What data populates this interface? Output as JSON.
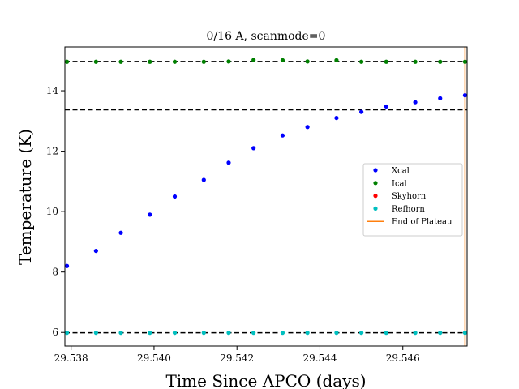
{
  "chart_data": {
    "type": "scatter",
    "title": "0/16 A, scanmode=0",
    "xlabel": "Time Since APCO (days)",
    "ylabel": "Temperature (K)",
    "xlim": [
      29.53785,
      29.54755
    ],
    "ylim": [
      5.55,
      15.45
    ],
    "xticks": [
      29.538,
      29.54,
      29.542,
      29.544,
      29.546
    ],
    "xtick_labels": [
      "29.538",
      "29.540",
      "29.542",
      "29.544",
      "29.546"
    ],
    "yticks": [
      6,
      8,
      10,
      12,
      14
    ],
    "ytick_labels": [
      "6",
      "8",
      "10",
      "12",
      "14"
    ],
    "grid": false,
    "legend_position": "center-right",
    "hlines": [
      {
        "y": 14.97,
        "color": "#000000",
        "style": "dashed"
      },
      {
        "y": 13.37,
        "color": "#000000",
        "style": "dashed"
      },
      {
        "y": 5.99,
        "color": "#000000",
        "style": "dashed"
      }
    ],
    "vlines": [
      {
        "x": 29.5475,
        "color": "#ff7f0e"
      }
    ],
    "series": [
      {
        "name": "Xcal",
        "color": "#0000ff",
        "marker": "point",
        "x": [
          29.5379,
          29.5386,
          29.5392,
          29.5399,
          29.5405,
          29.5412,
          29.5418,
          29.5424,
          29.5431,
          29.5437,
          29.5444,
          29.545,
          29.5456,
          29.5463,
          29.5469,
          29.5475
        ],
        "y": [
          8.2,
          8.7,
          9.3,
          9.9,
          10.5,
          11.05,
          11.62,
          12.1,
          12.52,
          12.8,
          13.1,
          13.3,
          13.48,
          13.62,
          13.75,
          13.85
        ]
      },
      {
        "name": "Ical",
        "color": "#008000",
        "marker": "point",
        "x": [
          29.5379,
          29.5386,
          29.5392,
          29.5399,
          29.5405,
          29.5412,
          29.5418,
          29.5424,
          29.5431,
          29.5437,
          29.5444,
          29.545,
          29.5456,
          29.5463,
          29.5469,
          29.5475
        ],
        "y": [
          14.96,
          14.96,
          14.96,
          14.96,
          14.96,
          14.96,
          14.97,
          15.02,
          15.01,
          14.97,
          15.01,
          14.96,
          14.96,
          14.96,
          14.96,
          14.96
        ]
      },
      {
        "name": "Skyhorn",
        "color": "#ff0000",
        "marker": "point",
        "x": [],
        "y": []
      },
      {
        "name": "Refhorn",
        "color": "#00bfbf",
        "marker": "point",
        "x": [
          29.5379,
          29.5386,
          29.5392,
          29.5399,
          29.5405,
          29.5412,
          29.5418,
          29.5424,
          29.5431,
          29.5437,
          29.5444,
          29.545,
          29.5456,
          29.5463,
          29.5469,
          29.5475
        ],
        "y": [
          5.99,
          5.99,
          5.99,
          5.99,
          5.99,
          5.99,
          5.99,
          5.99,
          5.99,
          5.99,
          5.99,
          5.99,
          5.99,
          5.99,
          5.99,
          5.99
        ]
      },
      {
        "name": "End of Plateau",
        "color": "#ff7f0e",
        "marker": "line",
        "x": [],
        "y": []
      }
    ]
  }
}
